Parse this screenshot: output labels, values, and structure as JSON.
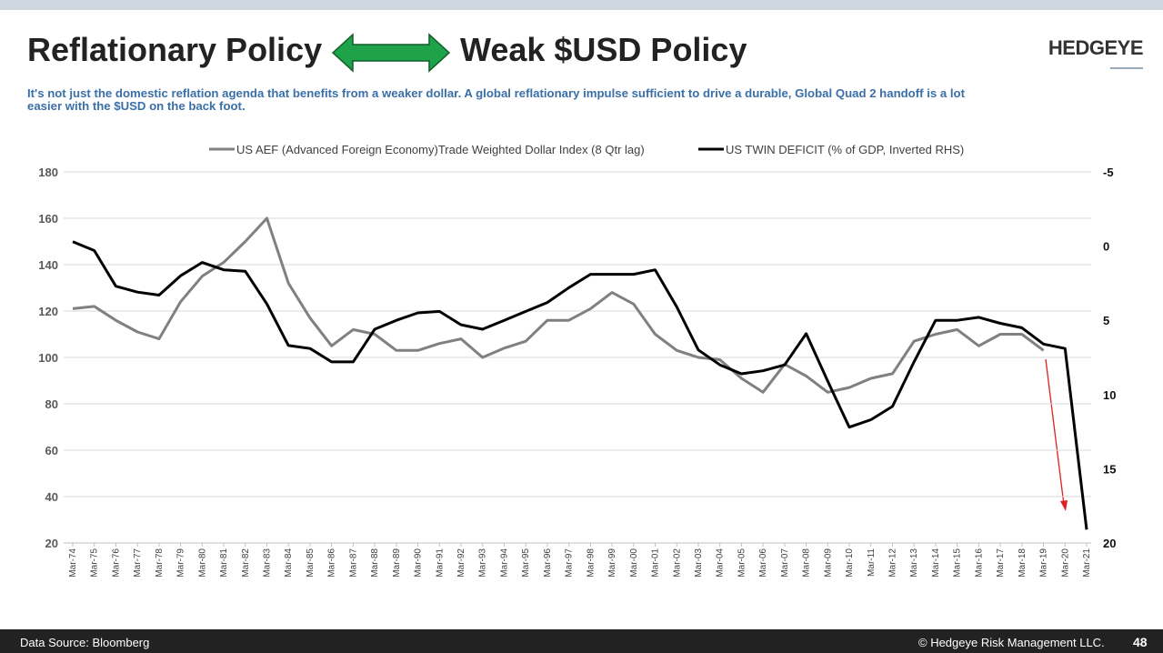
{
  "header": {
    "title_left": "Reflationary Policy",
    "title_right": "Weak $USD Policy",
    "brand": "HEDGEYE",
    "subtitle": "It's not just the domestic reflation agenda that benefits from a weaker dollar.  A global reflationary impulse sufficient to drive a durable, Global Quad 2 handoff is a lot easier with the $USD on the back foot."
  },
  "chart_data": {
    "type": "line",
    "categories": [
      "Mar-74",
      "Mar-75",
      "Mar-76",
      "Mar-77",
      "Mar-78",
      "Mar-79",
      "Mar-80",
      "Mar-81",
      "Mar-82",
      "Mar-83",
      "Mar-84",
      "Mar-85",
      "Mar-86",
      "Mar-87",
      "Mar-88",
      "Mar-89",
      "Mar-90",
      "Mar-91",
      "Mar-92",
      "Mar-93",
      "Mar-94",
      "Mar-95",
      "Mar-96",
      "Mar-97",
      "Mar-98",
      "Mar-99",
      "Mar-00",
      "Mar-01",
      "Mar-02",
      "Mar-03",
      "Mar-04",
      "Mar-05",
      "Mar-06",
      "Mar-07",
      "Mar-08",
      "Mar-09",
      "Mar-10",
      "Mar-11",
      "Mar-12",
      "Mar-13",
      "Mar-14",
      "Mar-15",
      "Mar-16",
      "Mar-17",
      "Mar-18",
      "Mar-19",
      "Mar-20",
      "Mar-21"
    ],
    "series": [
      {
        "name": "US AEF (Advanced Foreign Economy)Trade Weighted Dollar Index (8 Qtr lag)",
        "color": "#808080",
        "values": [
          121,
          122,
          116,
          111,
          108,
          124,
          135,
          141,
          150,
          160,
          132,
          117,
          105,
          112,
          110,
          103,
          103,
          106,
          108,
          100,
          104,
          107,
          116,
          116,
          121,
          128,
          123,
          110,
          103,
          100,
          99,
          91,
          85,
          97,
          92,
          85,
          87,
          91,
          93,
          107,
          110,
          112,
          105,
          110,
          110,
          103,
          null,
          null
        ]
      },
      {
        "name": "US TWIN DEFICIT (% of GDP, Inverted RHS)",
        "color": "#000000",
        "axis": "y2",
        "values": [
          -0.3,
          0.3,
          2.7,
          3.1,
          3.3,
          2.0,
          1.1,
          1.6,
          1.7,
          3.9,
          6.7,
          6.9,
          7.8,
          7.8,
          5.6,
          5.0,
          4.5,
          4.4,
          5.3,
          5.6,
          5.0,
          4.4,
          3.8,
          2.8,
          1.9,
          1.9,
          1.9,
          1.6,
          4.1,
          7.0,
          8.0,
          8.6,
          8.4,
          8.0,
          5.9,
          9.1,
          12.2,
          11.7,
          10.8,
          7.8,
          5.0,
          5.0,
          4.8,
          5.2,
          5.5,
          6.6,
          6.9,
          19.1
        ]
      }
    ],
    "ylim": [
      20,
      180
    ],
    "yticks": [
      20,
      40,
      60,
      80,
      100,
      120,
      140,
      160,
      180
    ],
    "y2lim": [
      20,
      -5
    ],
    "y2ticks": [
      -5,
      0,
      5,
      10,
      15,
      20
    ],
    "grid": true,
    "legend": "top"
  },
  "footer": {
    "source": "Data Source: Bloomberg",
    "copyright": "© Hedgeye Risk Management LLC.",
    "page": "48"
  }
}
